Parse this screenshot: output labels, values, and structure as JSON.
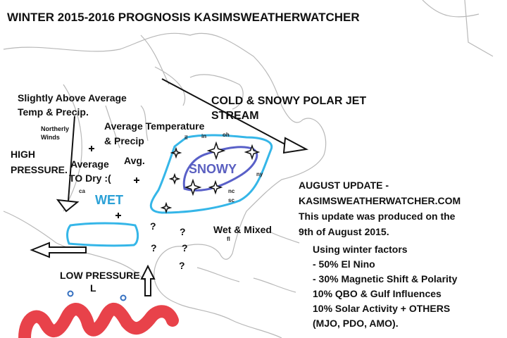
{
  "title": "WINTER 2015-2016 PROGNOSIS KASIMSWEATHERWATCHER",
  "labels": {
    "slightly_above": [
      "Slightly Above Average",
      "Temp & Precip."
    ],
    "northerly_winds": [
      "Northerly",
      "Winds"
    ],
    "high_pressure": [
      "HIGH",
      "PRESSURE."
    ],
    "average_to_dry": [
      "Average",
      "TO Dry :("
    ],
    "avg": "Avg.",
    "average_temperature": [
      "Average Temperature",
      "& Precip"
    ],
    "jet_stream": [
      "COLD & SNOWY POLAR JET",
      "STREAM"
    ],
    "snowy": "SNOWY",
    "wet": "WET",
    "wet_mixed": "Wet & Mixed",
    "low_pressure": "LOW PRESSURE",
    "low": "L"
  },
  "states": [
    "il",
    "in",
    "oh",
    "ny",
    "nc",
    "sc",
    "fl",
    "ca"
  ],
  "question_marks": [
    "?",
    "?",
    "?",
    "?",
    "?"
  ],
  "update": [
    "AUGUST UPDATE -",
    "KASIMSWEATHERWATCHER.COM",
    "This update was produced on the",
    "9th of August 2015."
  ],
  "factors": [
    "Using winter factors",
    "- 50% El Nino",
    "- 30% Magnetic Shift & Polarity",
    "10% QBO & Gulf Influences",
    "10% Solar Activity + OTHERS",
    "(MJO, PDO, AMO)."
  ]
}
